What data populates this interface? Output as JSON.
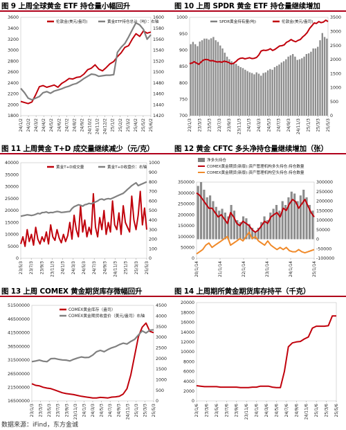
{
  "footer": {
    "source": "数据来源：iFind，东方金诚"
  },
  "colors": {
    "red": "#c0000b",
    "grey": "#808080",
    "orange": "#f08a2a",
    "title_rule": "#b0001a"
  },
  "chart_data": [
    {
      "id": "fig9",
      "title": "图 9 上周全球黄金 ETF 持仓量小幅回升",
      "type": "line",
      "left_axis": {
        "ticks": [
          "3600",
          "3400",
          "3200",
          "3000",
          "2800",
          "2600",
          "2400",
          "2200",
          "2000",
          "1800"
        ],
        "range": [
          1800,
          3600
        ]
      },
      "right_axis": {
        "ticks": [
          "1600",
          "1580",
          "1560",
          "1540",
          "1520",
          "1500",
          "1480",
          "1460",
          "1440",
          "1420"
        ],
        "range": [
          1420,
          1600
        ]
      },
      "x_ticks": [
        "24/1/2",
        "24/2/2",
        "24/3/2",
        "24/4/2",
        "24/5/2",
        "24/6/2",
        "24/7/2",
        "24/8/2",
        "24/9/2",
        "24/10/2",
        "24/11/2",
        "24/12/2",
        "25/1/2",
        "25/2/2",
        "25/3/2",
        "25/4/2",
        "25/5/2",
        "25/6/2"
      ],
      "series": [
        {
          "name": "伦敦金(美元/盎司)",
          "axis": "left",
          "color": "#c0000b",
          "values": [
            2060,
            2040,
            2020,
            2050,
            2180,
            2330,
            2350,
            2320,
            2340,
            2360,
            2320,
            2390,
            2430,
            2480,
            2470,
            2500,
            2510,
            2560,
            2640,
            2670,
            2730,
            2650,
            2620,
            2680,
            2750,
            2790,
            2880,
            2950,
            3050,
            3080,
            3200,
            3300,
            3250,
            3350,
            3310,
            3330
          ]
        },
        {
          "name": "黄金ETF持仓总计（吨）：右轴",
          "axis": "right",
          "color": "#808080",
          "values": [
            1470,
            1462,
            1452,
            1449,
            1452,
            1455,
            1462,
            1464,
            1461,
            1465,
            1467,
            1469,
            1472,
            1474,
            1477,
            1479,
            1483,
            1488,
            1492,
            1496,
            1495,
            1492,
            1493,
            1494,
            1494,
            1495,
            1536,
            1545,
            1552,
            1564,
            1577,
            1590,
            1586,
            1578,
            1560,
            1568
          ]
        }
      ]
    },
    {
      "id": "fig10",
      "title": "图 10 上周 SPDR 黄金 ETF 持仓量继续增加",
      "type": "bar+line",
      "left_axis": {
        "ticks": [
          "1000",
          "950",
          "900",
          "850",
          "800",
          "750",
          "700"
        ],
        "range": [
          700,
          1000
        ]
      },
      "right_axis": {
        "ticks": [
          "3500",
          "3000",
          "2500",
          "2000",
          "1500",
          "1000",
          "500",
          "0"
        ],
        "range": [
          0,
          3500
        ]
      },
      "x_ticks": [
        "23/1/3",
        "23/3/3",
        "23/5/3",
        "23/7/3",
        "23/9/3",
        "23/11/3",
        "24/1/3",
        "24/3/3",
        "24/5/3",
        "24/7/3",
        "24/9/3",
        "24/11/3",
        "25/1/3",
        "25/3/3",
        "25/5/3"
      ],
      "series": [
        {
          "name": "SPDR黄金持有量(吨)",
          "axis": "left",
          "type": "bar",
          "color": "#808080",
          "values": [
            918,
            925,
            918,
            912,
            926,
            930,
            935,
            935,
            932,
            936,
            940,
            930,
            925,
            914,
            905,
            892,
            880,
            872,
            866,
            862,
            858,
            852,
            848,
            845,
            840,
            836,
            832,
            830,
            826,
            832,
            828,
            822,
            830,
            832,
            838,
            842,
            840,
            848,
            852,
            856,
            862,
            866,
            872,
            880,
            884,
            888,
            880,
            870,
            872,
            875,
            880,
            888,
            890,
            895,
            905,
            905,
            910,
            930,
            952,
            940,
            935
          ]
        },
        {
          "name": "伦敦金(美元/盎司)",
          "axis": "right",
          "type": "line",
          "color": "#c0000b",
          "values": [
            1850,
            1870,
            1920,
            1870,
            1830,
            1910,
            1980,
            2000,
            1990,
            1950,
            1960,
            1930,
            1910,
            1920,
            1900,
            1940,
            1920,
            1890,
            1840,
            1860,
            1920,
            2000,
            2040,
            2050,
            2020,
            2040,
            2060,
            2030,
            2040,
            2070,
            2160,
            2300,
            2330,
            2320,
            2340,
            2380,
            2320,
            2360,
            2420,
            2480,
            2490,
            2520,
            2610,
            2650,
            2710,
            2660,
            2630,
            2680,
            2710,
            2800,
            2870,
            2960,
            3100,
            3200,
            3300,
            3280,
            3350,
            3310,
            3330,
            3400,
            3350
          ]
        }
      ]
    },
    {
      "id": "fig11",
      "title": "图 11 上周黄金 T+D 成交量继续减少（元/克）",
      "type": "line",
      "left_axis": {
        "ticks": [
          "40000",
          "35000",
          "30000",
          "25000",
          "20000",
          "15000",
          "10000",
          "5000",
          "0"
        ],
        "range": [
          0,
          40000
        ]
      },
      "right_axis": {
        "ticks": [
          "1000",
          "900",
          "800",
          "700",
          "600",
          "500",
          "400",
          "300",
          "200",
          "100",
          "0"
        ],
        "range": [
          0,
          1000
        ]
      },
      "x_ticks": [
        "23/5/3",
        "23/7/3",
        "23/9/3",
        "23/11/3",
        "24/1/3",
        "24/3/3",
        "24/5/3",
        "24/7/3",
        "24/9/3",
        "24/11/3",
        "25/1/3",
        "25/3/3",
        "25/5/3"
      ],
      "series": [
        {
          "name": "黄金T+D成交量",
          "axis": "left",
          "color": "#c0000b",
          "values": [
            6000,
            9000,
            5000,
            12000,
            7000,
            10000,
            5500,
            13000,
            8000,
            6000,
            9000,
            7000,
            11000,
            6000,
            14000,
            9000,
            7500,
            12000,
            8500,
            6500,
            10000,
            7000,
            9500,
            15000,
            8000,
            18000,
            12000,
            9000,
            22000,
            11000,
            16000,
            9000,
            13000,
            10000,
            27000,
            13000,
            9000,
            17000,
            12000,
            20000,
            10000,
            15000,
            11000,
            24000,
            14000,
            12000,
            19000,
            10000,
            22000,
            15000,
            13000,
            11000,
            26000,
            16000,
            12000,
            18000,
            28000,
            14000,
            21000,
            12000
          ]
        },
        {
          "name": "黄金T+D收盘价：右轴",
          "axis": "right",
          "color": "#808080",
          "values": [
            440,
            445,
            450,
            455,
            452,
            448,
            452,
            460,
            470,
            465,
            478,
            480,
            485,
            475,
            480,
            478,
            485,
            490,
            487,
            480,
            482,
            485,
            488,
            490,
            520,
            540,
            550,
            560,
            555,
            545,
            560,
            565,
            575,
            570,
            580,
            590,
            600,
            615,
            620,
            610,
            620,
            625,
            620,
            630,
            640,
            650,
            660,
            670,
            680,
            700,
            720,
            740,
            760,
            775,
            790,
            760,
            770,
            780,
            790,
            800
          ]
        }
      ]
    },
    {
      "id": "fig12",
      "title": "图 12 黄金 CFTC 多头净持仓量继续增加（张）",
      "type": "bar+line",
      "left_axis": {
        "ticks": [
          "350000",
          "300000",
          "250000",
          "200000",
          "150000",
          "100000",
          "50000",
          "0"
        ],
        "range": [
          0,
          350000
        ]
      },
      "right_axis": {
        "ticks": [
          "300000",
          "250000",
          "200000",
          "150000",
          "100000",
          "50000",
          "0",
          "-50000",
          "-100000"
        ],
        "range": [
          -100000,
          300000
        ]
      },
      "x_ticks": [
        "20/1/14",
        "21/1/14",
        "22/1/14",
        "23/1/14",
        "24/1/14",
        "25/1/14"
      ],
      "series": [
        {
          "name": "净多头持仓",
          "axis": "right",
          "type": "bar",
          "color": "#808080",
          "values": [
            280000,
            300000,
            260000,
            220000,
            230000,
            200000,
            170000,
            150000,
            160000,
            140000,
            120000,
            180000,
            150000,
            100000,
            90000,
            120000,
            110000,
            80000,
            60000,
            40000,
            60000,
            90000,
            120000,
            100000,
            140000,
            160000,
            180000,
            150000,
            200000,
            180000,
            220000,
            250000,
            240000,
            200000,
            230000,
            260000,
            220000,
            180000,
            150000
          ]
        },
        {
          "name": "COMEX黄金期货(新版):资产管理机构多头持仓:持仓数量",
          "axis": "left",
          "type": "line",
          "color": "#c0000b",
          "values": [
            300000,
            290000,
            270000,
            250000,
            230000,
            230000,
            210000,
            190000,
            200000,
            180000,
            160000,
            210000,
            190000,
            160000,
            150000,
            170000,
            160000,
            150000,
            130000,
            120000,
            130000,
            150000,
            170000,
            160000,
            190000,
            200000,
            210000,
            190000,
            230000,
            220000,
            250000,
            270000,
            260000,
            230000,
            250000,
            270000,
            240000,
            210000,
            190000
          ]
        },
        {
          "name": "COMEX黄金期货(新版):资产管理机构空头持仓:持仓数量",
          "axis": "left",
          "type": "line",
          "color": "#f08a2a",
          "values": [
            20000,
            30000,
            40000,
            60000,
            70000,
            50000,
            60000,
            70000,
            80000,
            90000,
            100000,
            60000,
            70000,
            80000,
            90000,
            80000,
            100000,
            120000,
            90000,
            100000,
            80000,
            70000,
            60000,
            80000,
            60000,
            50000,
            40000,
            50000,
            40000,
            50000,
            35000,
            30000,
            30000,
            40000,
            30000,
            25000,
            30000,
            35000,
            40000
          ]
        }
      ]
    },
    {
      "id": "fig13",
      "title": "图 13 上周 COMEX 黄金期货库存微幅回升",
      "type": "line",
      "left_axis": {
        "ticks": [
          "51500000",
          "46500000",
          "41500000",
          "36500000",
          "31500000",
          "26500000",
          "21500000",
          "16500000"
        ],
        "range": [
          16500000,
          51500000
        ]
      },
      "right_axis": {
        "ticks": [
          "4500",
          "4000",
          "3500",
          "3000",
          "2500",
          "2000",
          "1500",
          "1000",
          "500",
          "0"
        ],
        "range": [
          0,
          4500
        ]
      },
      "x_ticks": [
        "23/1/3",
        "23/3/3",
        "23/5/3",
        "23/7/3",
        "23/9/3",
        "23/11/3",
        "24/1/3",
        "24/3/3",
        "24/5/3",
        "24/7/3",
        "24/9/3",
        "24/11/3",
        "25/1/3",
        "25/3/3",
        "25/5/3"
      ],
      "series": [
        {
          "name": "COMEX黄金库存（盎司）",
          "axis": "left",
          "color": "#c0000b",
          "values": [
            22800000,
            22200000,
            22000000,
            21500000,
            21200000,
            21000000,
            20500000,
            20000000,
            19500000,
            19200000,
            19000000,
            18800000,
            18500000,
            18200000,
            18000000,
            17800000,
            17600000,
            17600000,
            17800000,
            17700000,
            17600000,
            17900000,
            18000000,
            18200000,
            19000000,
            21000000,
            26000000,
            33000000,
            40000000,
            43500000,
            45000000,
            42000000,
            41500000
          ]
        },
        {
          "name": "COMEX黄金期货收盘价（美元/盎司）右轴",
          "axis": "right",
          "color": "#808080",
          "values": [
            1850,
            1880,
            1920,
            1870,
            1850,
            1990,
            2000,
            1960,
            1930,
            1920,
            1880,
            1960,
            2020,
            2070,
            2040,
            2050,
            2160,
            2320,
            2380,
            2320,
            2420,
            2500,
            2560,
            2650,
            2720,
            2680,
            2800,
            2900,
            3100,
            3300,
            3200,
            3330,
            3350
          ]
        }
      ]
    },
    {
      "id": "fig14",
      "title": "图 14 上周期所黄金期货库存持平（千克）",
      "type": "line",
      "left_axis": {
        "ticks": [
          "20000",
          "18000",
          "16000",
          "14000",
          "12000",
          "10000",
          "8000",
          "6000",
          "4000",
          "2000",
          "0"
        ],
        "range": [
          0,
          20000
        ]
      },
      "x_ticks": [
        "23/1/6",
        "23/3/6",
        "23/5/6",
        "23/7/6",
        "23/9/6",
        "23/11/6",
        "24/1/6",
        "24/3/6",
        "24/5/6",
        "24/7/6",
        "24/9/6",
        "24/11/6",
        "25/1/6",
        "25/3/6",
        "25/5/6"
      ],
      "series": [
        {
          "name": "上期所黄金期货库存",
          "axis": "left",
          "color": "#c0000b",
          "values": [
            3100,
            3000,
            2900,
            2900,
            2900,
            2900,
            2800,
            2800,
            2800,
            2800,
            2800,
            2700,
            2700,
            2700,
            2800,
            2800,
            3000,
            3000,
            3000,
            2800,
            2700,
            2700,
            6000,
            11000,
            11800,
            12000,
            12100,
            12600,
            13000,
            14800,
            15200,
            15200,
            15200,
            15300,
            17300,
            17300
          ]
        }
      ]
    }
  ]
}
